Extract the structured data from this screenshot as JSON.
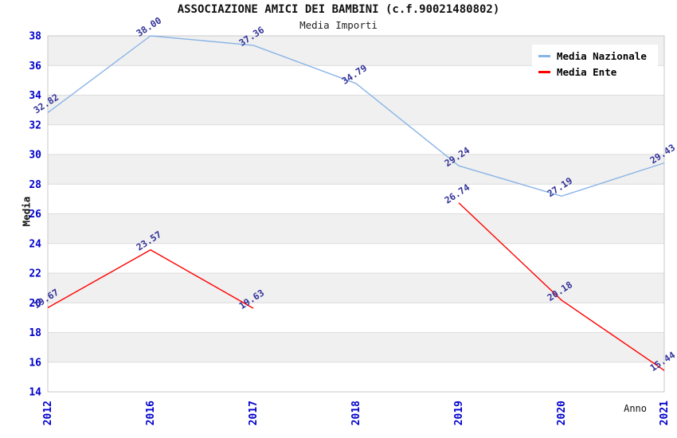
{
  "title": "ASSOCIAZIONE AMICI DEI BAMBINI (c.f.90021480802)",
  "subtitle": "Media Importi",
  "chart_data": {
    "type": "line",
    "categories": [
      "2012",
      "2016",
      "2017",
      "2018",
      "2019",
      "2020",
      "2021"
    ],
    "series": [
      {
        "name": "Media Nazionale",
        "color": "#8ab4e6",
        "values": [
          32.82,
          38.0,
          37.36,
          34.79,
          29.24,
          27.19,
          29.43
        ]
      },
      {
        "name": "Media Ente",
        "color": "#ff0000",
        "values": [
          19.67,
          23.57,
          19.63,
          null,
          26.74,
          20.18,
          15.44
        ]
      }
    ],
    "xlabel": "Anno",
    "ylabel": "Media",
    "ylim": [
      14,
      38
    ],
    "ytick_step": 2,
    "grid": "horizontal-bands",
    "legend_position": "top-right",
    "colors": {
      "band_fill": "#f0f0f0",
      "gridline": "#dcdcdc",
      "plot_border": "#c8c8c8",
      "tick_label": "#0000cc",
      "data_label": "#333399",
      "background": "#ffffff"
    }
  }
}
